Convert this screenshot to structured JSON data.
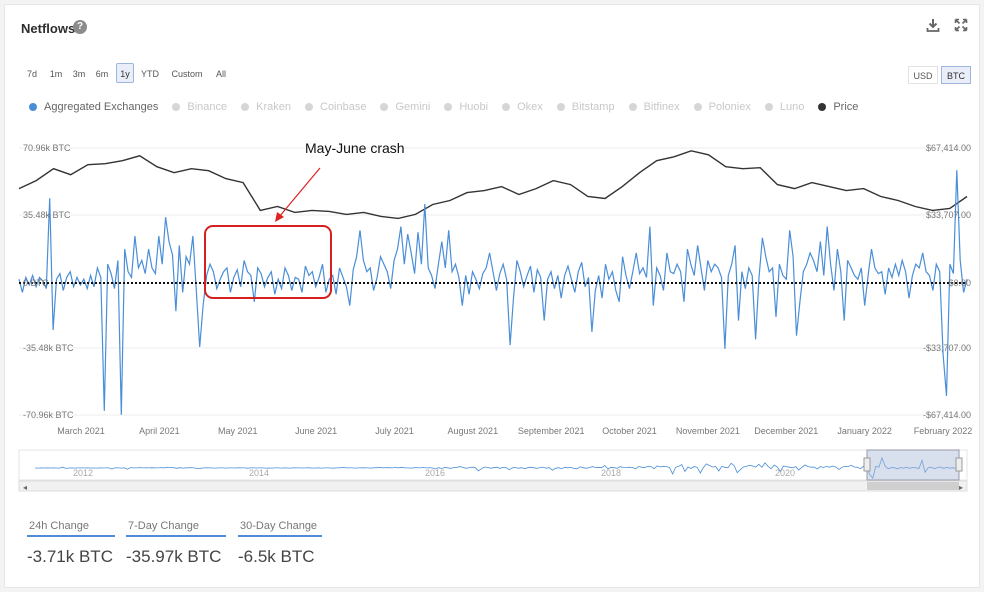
{
  "header": {
    "title": "Netflows",
    "help_icon": "help-icon"
  },
  "toolbar": {
    "download_icon": "download-icon",
    "expand_icon": "expand-icon"
  },
  "ranges": {
    "items": [
      "7d",
      "1m",
      "3m",
      "6m",
      "1y",
      "YTD",
      "Custom",
      "All"
    ],
    "selected": "1y"
  },
  "currency": {
    "items": [
      "USD",
      "BTC"
    ],
    "selected": "BTC"
  },
  "legend": {
    "items": [
      {
        "label": "Aggregated Exchanges",
        "color": "#4a8ed8",
        "active": true
      },
      {
        "label": "Binance",
        "color": "#d6d6d6",
        "active": false
      },
      {
        "label": "Kraken",
        "color": "#d6d6d6",
        "active": false
      },
      {
        "label": "Coinbase",
        "color": "#d6d6d6",
        "active": false
      },
      {
        "label": "Gemini",
        "color": "#d6d6d6",
        "active": false
      },
      {
        "label": "Huobi",
        "color": "#d6d6d6",
        "active": false
      },
      {
        "label": "Okex",
        "color": "#d6d6d6",
        "active": false
      },
      {
        "label": "Bitstamp",
        "color": "#d6d6d6",
        "active": false
      },
      {
        "label": "Bitfinex",
        "color": "#d6d6d6",
        "active": false
      },
      {
        "label": "Poloniex",
        "color": "#d6d6d6",
        "active": false
      },
      {
        "label": "Luno",
        "color": "#d6d6d6",
        "active": false
      },
      {
        "label": "Price",
        "color": "#333333",
        "active": true
      }
    ]
  },
  "annotation": {
    "text": "May-June crash"
  },
  "stats": [
    {
      "label": "24h Change",
      "value": "-3.71k BTC"
    },
    {
      "label": "7-Day Change",
      "value": "-35.97k BTC"
    },
    {
      "label": "30-Day Change",
      "value": "-6.5k BTC"
    }
  ],
  "chart_data": {
    "type": "line",
    "x_ticks": [
      "March 2021",
      "April 2021",
      "May 2021",
      "June 2021",
      "July 2021",
      "August 2021",
      "September 2021",
      "October 2021",
      "November 2021",
      "December 2021",
      "January 2022",
      "February 2022"
    ],
    "left_axis": {
      "ticks": [
        "70.96k BTC",
        "35.48k BTC",
        "0 BTC",
        "-35.48k BTC",
        "-70.96k BTC"
      ]
    },
    "right_axis": {
      "ticks": [
        "$67,414.00",
        "$33,707.00",
        "$0.00",
        "-$33,707.00",
        "-$67,414.00"
      ]
    },
    "price_series": {
      "name": "Price",
      "color": "#333333",
      "values": [
        47000,
        51000,
        57000,
        54000,
        59000,
        59500,
        61000,
        63500,
        58000,
        55000,
        57000,
        56000,
        52000,
        50000,
        36000,
        38000,
        35000,
        36000,
        35500,
        34000,
        35000,
        33000,
        32000,
        34000,
        39000,
        41000,
        45000,
        46000,
        48000,
        44000,
        47000,
        51000,
        49000,
        43000,
        42000,
        48000,
        55000,
        61000,
        63000,
        66000,
        64000,
        58000,
        57000,
        57500,
        49000,
        47000,
        50000,
        48000,
        46000,
        47000,
        43000,
        41000,
        38000,
        36000,
        37000,
        43000
      ]
    },
    "netflow_series": {
      "name": "Aggregated Exchanges",
      "color": "#4a8ed8",
      "values": [
        2000,
        -5000,
        3000,
        -1000,
        4000,
        -2000,
        3000,
        1000,
        -3000,
        45000,
        -25000,
        2000,
        5000,
        -4000,
        3000,
        6000,
        -2000,
        3000,
        -1000,
        2000,
        -3000,
        4000,
        -2000,
        8000,
        3000,
        -68000,
        10000,
        5000,
        -3000,
        12000,
        -70000,
        18000,
        6000,
        3000,
        25000,
        8000,
        12000,
        5000,
        18000,
        8000,
        5000,
        25000,
        10000,
        35000,
        22000,
        15000,
        -15000,
        20000,
        -5000,
        14000,
        10000,
        25000,
        -4000,
        -34000,
        -12000,
        4000,
        10000,
        6000,
        -3000,
        2000,
        6000,
        8000,
        -5000,
        3000,
        7000,
        -2000,
        12000,
        6000,
        4000,
        -10000,
        8000,
        5000,
        -2000,
        3000,
        6000,
        -6000,
        2000,
        -3000,
        8000,
        4000,
        -4000,
        3000,
        2000,
        -5000,
        9000,
        4000,
        6000,
        -2000,
        3000,
        10000,
        -5000,
        2000,
        4000,
        -6000,
        8000,
        3000,
        -2000,
        -12000,
        7000,
        14000,
        28000,
        12000,
        6000,
        8000,
        -4000,
        3000,
        14000,
        10000,
        6000,
        -3000,
        12000,
        18000,
        30000,
        10000,
        26000,
        16000,
        5000,
        27000,
        10000,
        42000,
        8000,
        4000,
        -3000,
        10000,
        22000,
        8000,
        28000,
        6000,
        10000,
        3000,
        -12000,
        4000,
        -6000,
        6000,
        2000,
        -3000,
        5000,
        8000,
        16000,
        6000,
        -4000,
        5000,
        10000,
        2000,
        -33000,
        -8000,
        12000,
        6000,
        -2000,
        4000,
        9000,
        -5000,
        7000,
        3000,
        -20000,
        2000,
        6000,
        -3000,
        4000,
        -8000,
        4000,
        9000,
        2000,
        -5000,
        6000,
        11000,
        -2000,
        3000,
        -26000,
        -4000,
        4000,
        -8000,
        10000,
        2000,
        6000,
        -4000,
        -10000,
        14000,
        4000,
        -3000,
        6000,
        16000,
        5000,
        8000,
        3000,
        30000,
        -12000,
        8000,
        4000,
        -4000,
        16000,
        6000,
        5000,
        10000,
        6000,
        -10000,
        18000,
        10000,
        4000,
        20000,
        8000,
        -4000,
        12000,
        6000,
        10000,
        8000,
        3000,
        -35000,
        4000,
        10000,
        20000,
        -20000,
        6000,
        -3000,
        8000,
        4000,
        -30000,
        3000,
        24000,
        14000,
        6000,
        8000,
        -18000,
        10000,
        4000,
        2000,
        28000,
        14000,
        -28000,
        -10000,
        6000,
        10000,
        16000,
        12000,
        6000,
        22000,
        4000,
        30000,
        10000,
        -4000,
        18000,
        6000,
        -20000,
        12000,
        8000,
        4000,
        2000,
        8000,
        -12000,
        4000,
        18000,
        8000,
        5000,
        6000,
        -6000,
        8000,
        3000,
        10000,
        4000,
        12000,
        6000,
        -8000,
        4000,
        10000,
        8000,
        16000,
        6000,
        4000,
        -4000,
        10000,
        6000,
        -38000,
        -60000,
        10000,
        5000,
        60000,
        12000,
        -5000,
        2000
      ]
    }
  }
}
